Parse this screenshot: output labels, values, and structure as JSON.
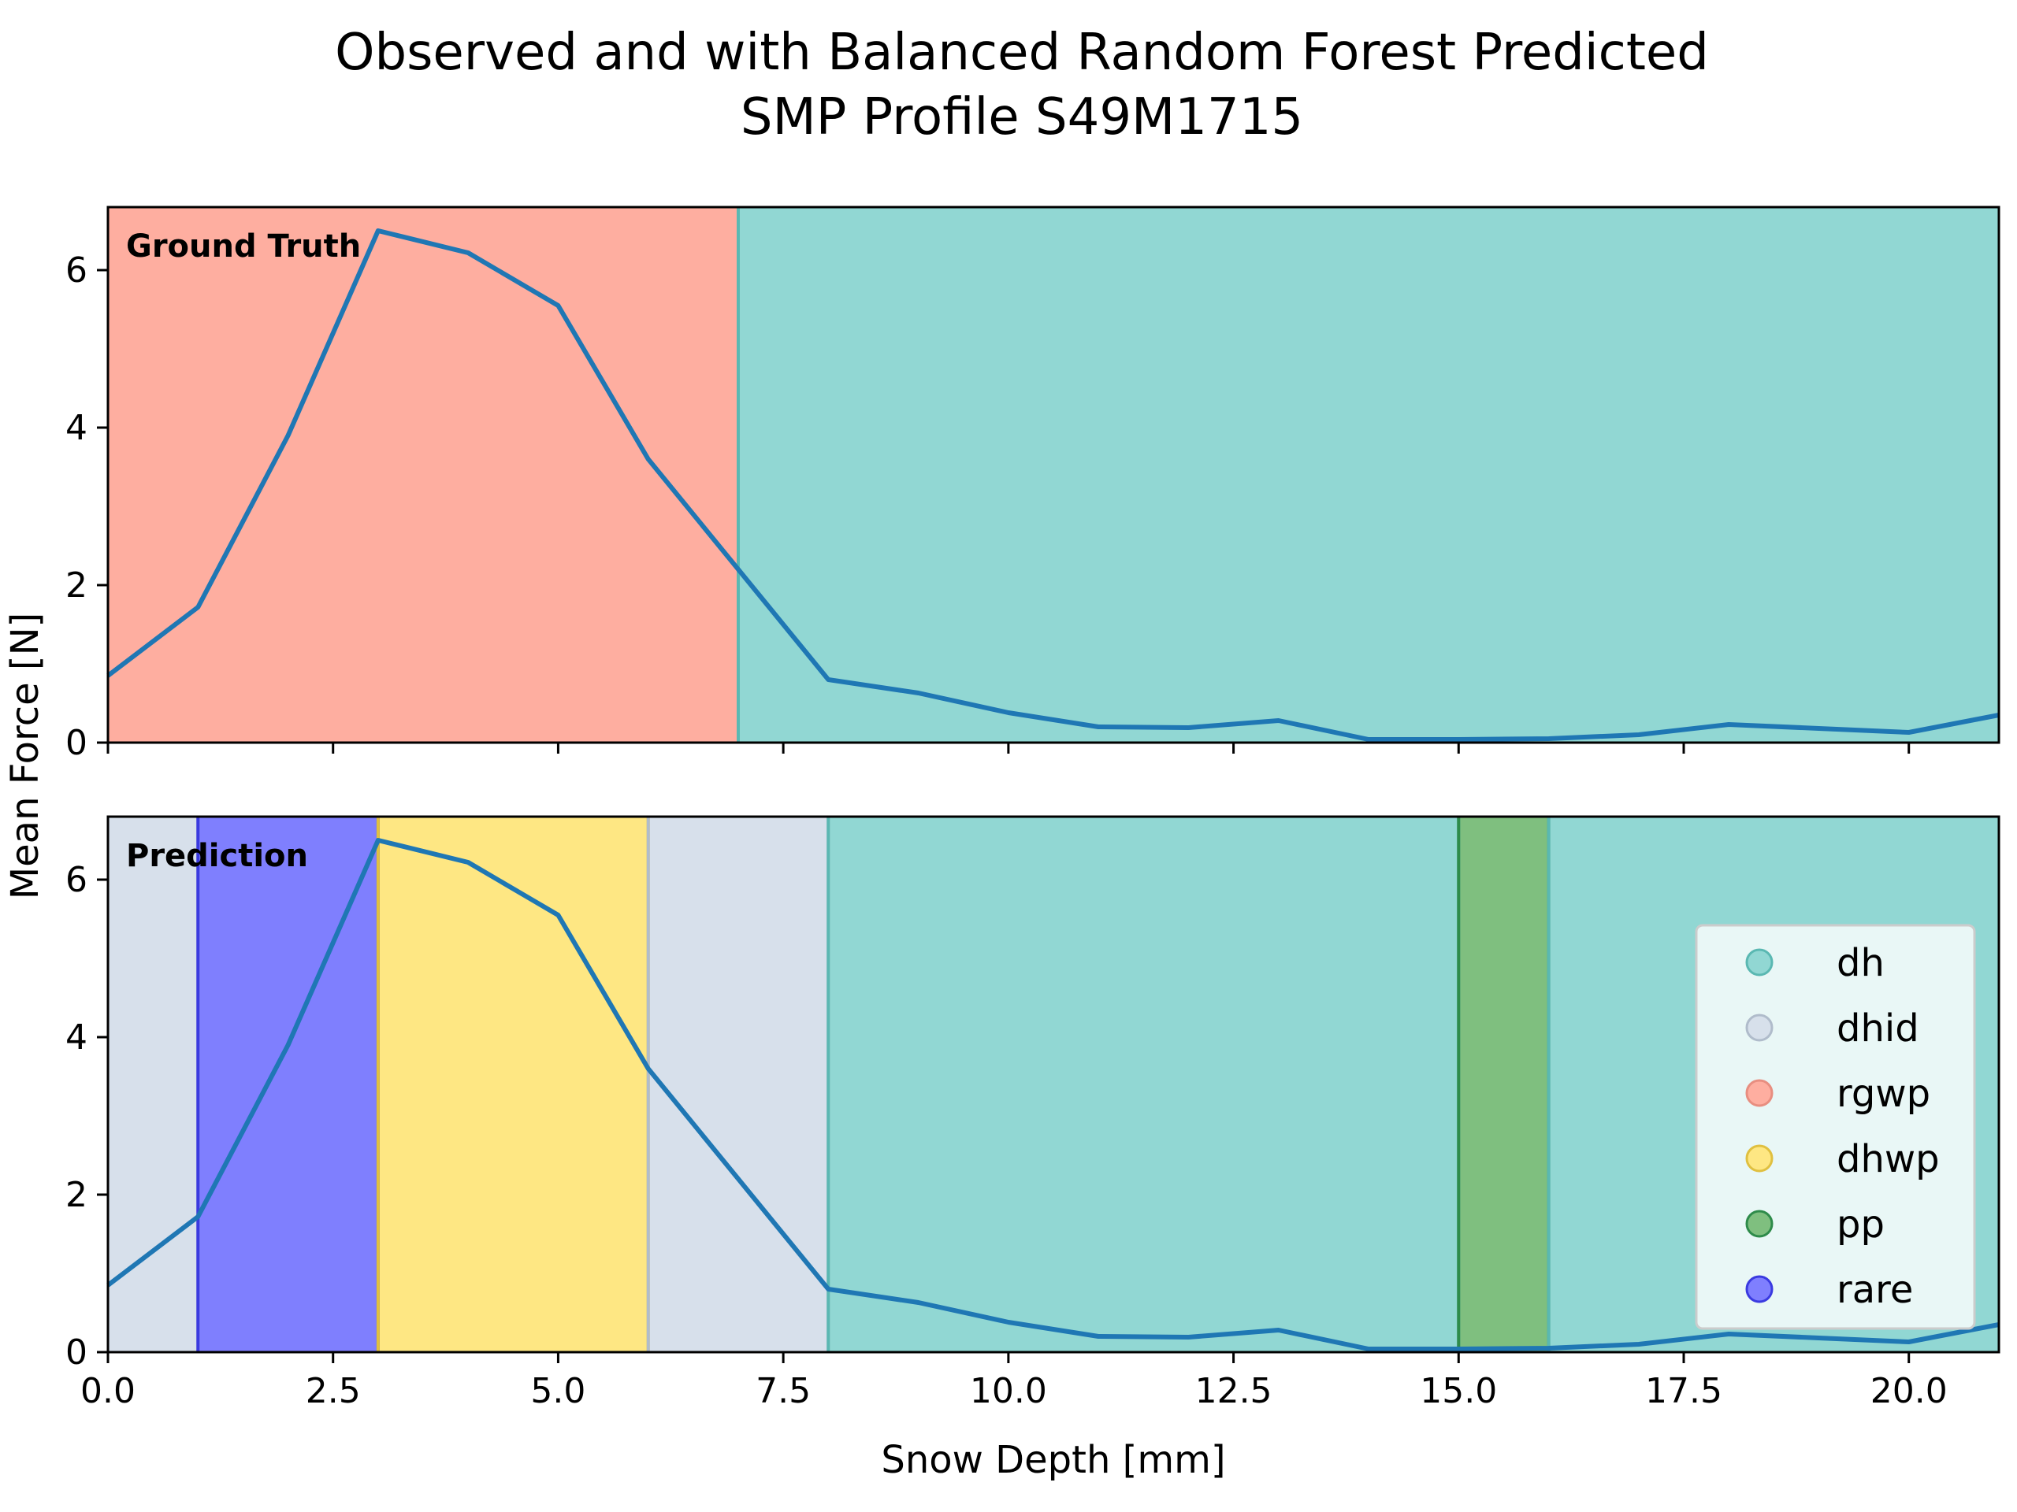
{
  "chart_data": {
    "type": "line",
    "title": [
      "Observed and with Balanced Random Forest Predicted",
      "SMP Profile S49M1715"
    ],
    "xlabel": "Snow Depth [mm]",
    "ylabel": "Mean Force [N]",
    "xlim": [
      0,
      21
    ],
    "ylim": [
      0,
      6.8
    ],
    "xticks": [
      0.0,
      2.5,
      5.0,
      7.5,
      10.0,
      12.5,
      15.0,
      17.5,
      20.0
    ],
    "xtick_labels": [
      "0.0",
      "2.5",
      "5.0",
      "7.5",
      "10.0",
      "12.5",
      "15.0",
      "17.5",
      "20.0"
    ],
    "yticks": [
      0,
      2,
      4,
      6
    ],
    "ytick_labels": [
      "0",
      "2",
      "4",
      "6"
    ],
    "line_color": "#1f77b4",
    "series": [
      {
        "x": [
          0,
          1,
          2,
          3,
          4,
          5,
          6,
          7,
          8,
          9,
          10,
          11,
          12,
          13,
          14,
          15,
          16,
          17,
          18,
          19,
          20,
          21
        ],
        "values": [
          0.85,
          1.72,
          3.9,
          6.5,
          6.22,
          5.55,
          3.6,
          2.2,
          0.8,
          0.63,
          0.38,
          0.2,
          0.19,
          0.28,
          0.04,
          0.04,
          0.05,
          0.1,
          0.23,
          0.18,
          0.13,
          0.35
        ]
      }
    ],
    "grain_colors": {
      "dh": "#91d7d3",
      "dhid": "#d7e0eb",
      "rgwp": "#feaea0",
      "dhwp": "#fee783",
      "pp": "#7fbf7f",
      "rare": "#7f7ffe"
    },
    "grain_edges": {
      "dh": "#5ab8b2",
      "dhid": "#b0bccb",
      "rgwp": "#e88e80",
      "dhwp": "#e0c040",
      "pp": "#2e8b4a",
      "rare": "#3a3ae0"
    },
    "panels": [
      {
        "label": "Ground Truth",
        "segments": [
          {
            "start": 0,
            "end": 7,
            "grain": "rgwp"
          },
          {
            "start": 7,
            "end": 21,
            "grain": "dh"
          }
        ]
      },
      {
        "label": "Prediction",
        "segments": [
          {
            "start": 0,
            "end": 1,
            "grain": "dhid"
          },
          {
            "start": 1,
            "end": 3,
            "grain": "rare"
          },
          {
            "start": 3,
            "end": 6,
            "grain": "dhwp"
          },
          {
            "start": 6,
            "end": 8,
            "grain": "dhid"
          },
          {
            "start": 8,
            "end": 15,
            "grain": "dh"
          },
          {
            "start": 15,
            "end": 16,
            "grain": "pp"
          },
          {
            "start": 16,
            "end": 21,
            "grain": "dh"
          }
        ]
      }
    ],
    "legend": {
      "location": "lower-right of bottom panel",
      "entries": [
        "dh",
        "dhid",
        "rgwp",
        "dhwp",
        "pp",
        "rare"
      ]
    }
  }
}
